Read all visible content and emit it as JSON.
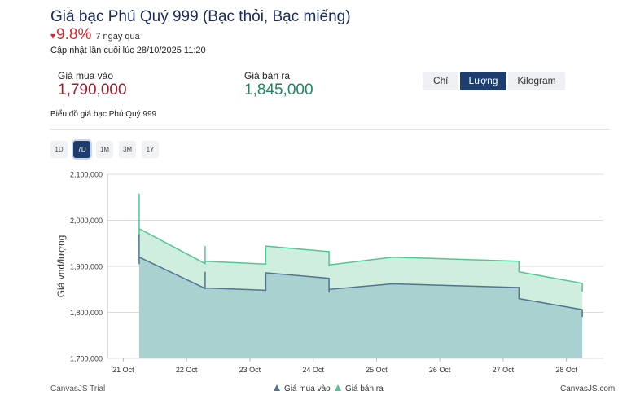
{
  "header": {
    "title": "Giá bạc Phú Quý 999 (Bạc thỏi, Bạc miếng)",
    "change_arrow": "▾",
    "change_value": "9.8%",
    "change_period": "7 ngày qua",
    "updated": "Cập nhật lần cuối lúc 28/10/2025 11:20"
  },
  "prices": {
    "buy_label": "Giá mua vào",
    "buy_value": "1,790,000",
    "sell_label": "Giá bán ra",
    "sell_value": "1,845,000"
  },
  "unit_tabs": [
    {
      "label": "Chỉ",
      "active": false
    },
    {
      "label": "Lượng",
      "active": true
    },
    {
      "label": "Kilogram",
      "active": false
    }
  ],
  "chart_caption": "Biểu đồ giá bạc Phú Quý 999",
  "range_tabs": [
    {
      "label": "1D",
      "active": false
    },
    {
      "label": "7D",
      "active": true
    },
    {
      "label": "1M",
      "active": false
    },
    {
      "label": "3M",
      "active": false
    },
    {
      "label": "1Y",
      "active": false
    }
  ],
  "footer": {
    "trial": "CanvasJS Trial",
    "credit": "CanvasJS.com"
  },
  "colors": {
    "buy_line": "#4f7494",
    "buy_fill": "#a9d1cf",
    "sell_line": "#4fc794",
    "sell_fill": "#cfeedd",
    "grid": "#dcdcdc"
  },
  "chart_data": {
    "type": "area",
    "title": "",
    "xlabel": "",
    "ylabel": "Giá vnd/lượng",
    "ylim": [
      1700000,
      2100000
    ],
    "yticks": [
      1700000,
      1800000,
      1900000,
      2000000,
      2100000
    ],
    "ytick_labels": [
      "1,700,000",
      "1,800,000",
      "1,900,000",
      "2,000,000",
      "2,100,000"
    ],
    "xlim": [
      "2025-10-20T18:00",
      "2025-10-28T14:00"
    ],
    "xticks": [
      "2025-10-21",
      "2025-10-22",
      "2025-10-23",
      "2025-10-24",
      "2025-10-25",
      "2025-10-26",
      "2025-10-27",
      "2025-10-28"
    ],
    "xtick_labels": [
      "21 Oct",
      "22 Oct",
      "23 Oct",
      "24 Oct",
      "25 Oct",
      "26 Oct",
      "27 Oct",
      "28 Oct"
    ],
    "grid": true,
    "legend_position": "bottom",
    "series": [
      {
        "name": "Giá mua vào",
        "color": "#4f7494",
        "points": [
          [
            "2025-10-21T06:00",
            1970000
          ],
          [
            "2025-10-21T06:00",
            1905000
          ],
          [
            "2025-10-21T06:00",
            1920000
          ],
          [
            "2025-10-22T07:00",
            1852000
          ],
          [
            "2025-10-22T07:00",
            1888000
          ],
          [
            "2025-10-22T07:00",
            1853000
          ],
          [
            "2025-10-23T06:00",
            1848000
          ],
          [
            "2025-10-23T06:00",
            1886000
          ],
          [
            "2025-10-24T06:00",
            1874000
          ],
          [
            "2025-10-24T06:00",
            1843000
          ],
          [
            "2025-10-24T06:00",
            1850000
          ],
          [
            "2025-10-25T06:00",
            1862000
          ],
          [
            "2025-10-27T06:00",
            1854000
          ],
          [
            "2025-10-27T06:00",
            1830000
          ],
          [
            "2025-10-28T06:00",
            1806000
          ],
          [
            "2025-10-28T06:00",
            1790000
          ]
        ]
      },
      {
        "name": "Giá bán ra",
        "color": "#4fc794",
        "points": [
          [
            "2025-10-21T06:00",
            2058000
          ],
          [
            "2025-10-21T06:00",
            1965000
          ],
          [
            "2025-10-21T06:00",
            1982000
          ],
          [
            "2025-10-22T07:00",
            1906000
          ],
          [
            "2025-10-22T07:00",
            1944000
          ],
          [
            "2025-10-22T07:00",
            1911000
          ],
          [
            "2025-10-23T06:00",
            1905000
          ],
          [
            "2025-10-23T06:00",
            1944000
          ],
          [
            "2025-10-24T06:00",
            1932000
          ],
          [
            "2025-10-24T06:00",
            1900000
          ],
          [
            "2025-10-24T06:00",
            1903000
          ],
          [
            "2025-10-25T06:00",
            1920000
          ],
          [
            "2025-10-27T06:00",
            1911000
          ],
          [
            "2025-10-27T06:00",
            1888000
          ],
          [
            "2025-10-28T06:00",
            1863000
          ],
          [
            "2025-10-28T06:00",
            1845000
          ]
        ]
      }
    ]
  }
}
